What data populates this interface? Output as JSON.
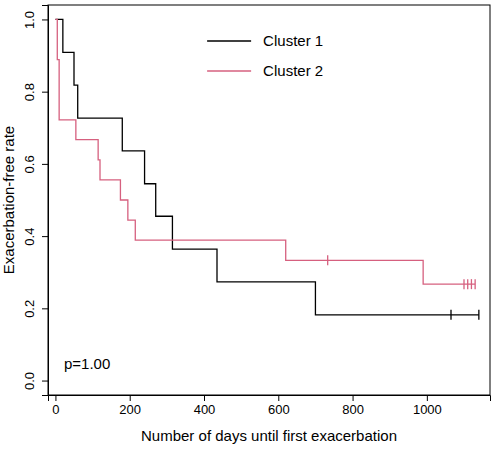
{
  "chart_data": {
    "type": "step",
    "x_label": "Number of days until first exacerbation",
    "y_label": "Exacerbation-free rate",
    "annotation": "p=1.00",
    "legend": "top",
    "xlim": [
      -20,
      1170
    ],
    "xticks": [
      0,
      200,
      400,
      600,
      800,
      1000
    ],
    "ylim": [
      -0.04,
      1.04
    ],
    "yticks": [
      {
        "value": 0,
        "label": "0.0"
      },
      {
        "value": 0.2,
        "label": "0.2"
      },
      {
        "value": 0.4,
        "label": "0.4"
      },
      {
        "value": 0.6,
        "label": "0.6"
      },
      {
        "value": 0.8,
        "label": "0.8"
      },
      {
        "value": 1,
        "label": "1.0"
      }
    ],
    "series": [
      {
        "name": "Cluster 1",
        "color": "#000000",
        "x": [
          0,
          20,
          50,
          60,
          180,
          240,
          270,
          315,
          435,
          700,
          1140
        ],
        "values": [
          1,
          0.909,
          0.818,
          0.727,
          0.636,
          0.545,
          0.455,
          0.364,
          0.273,
          0.182,
          0.182
        ],
        "censor_x": [
          1065,
          1140
        ],
        "censor_values": [
          0.182,
          0.182
        ]
      },
      {
        "name": "Cluster 2",
        "color": "#d6607f",
        "x": [
          0,
          5,
          10,
          55,
          115,
          120,
          175,
          195,
          215,
          620,
          990,
          1130
        ],
        "values": [
          1,
          0.889,
          0.722,
          0.667,
          0.611,
          0.556,
          0.5,
          0.444,
          0.389,
          0.333,
          0.267,
          0.267
        ],
        "censor_x": [
          733,
          1100,
          1110,
          1120,
          1130
        ],
        "censor_values": [
          0.333,
          0.267,
          0.267,
          0.267,
          0.267
        ]
      }
    ]
  }
}
